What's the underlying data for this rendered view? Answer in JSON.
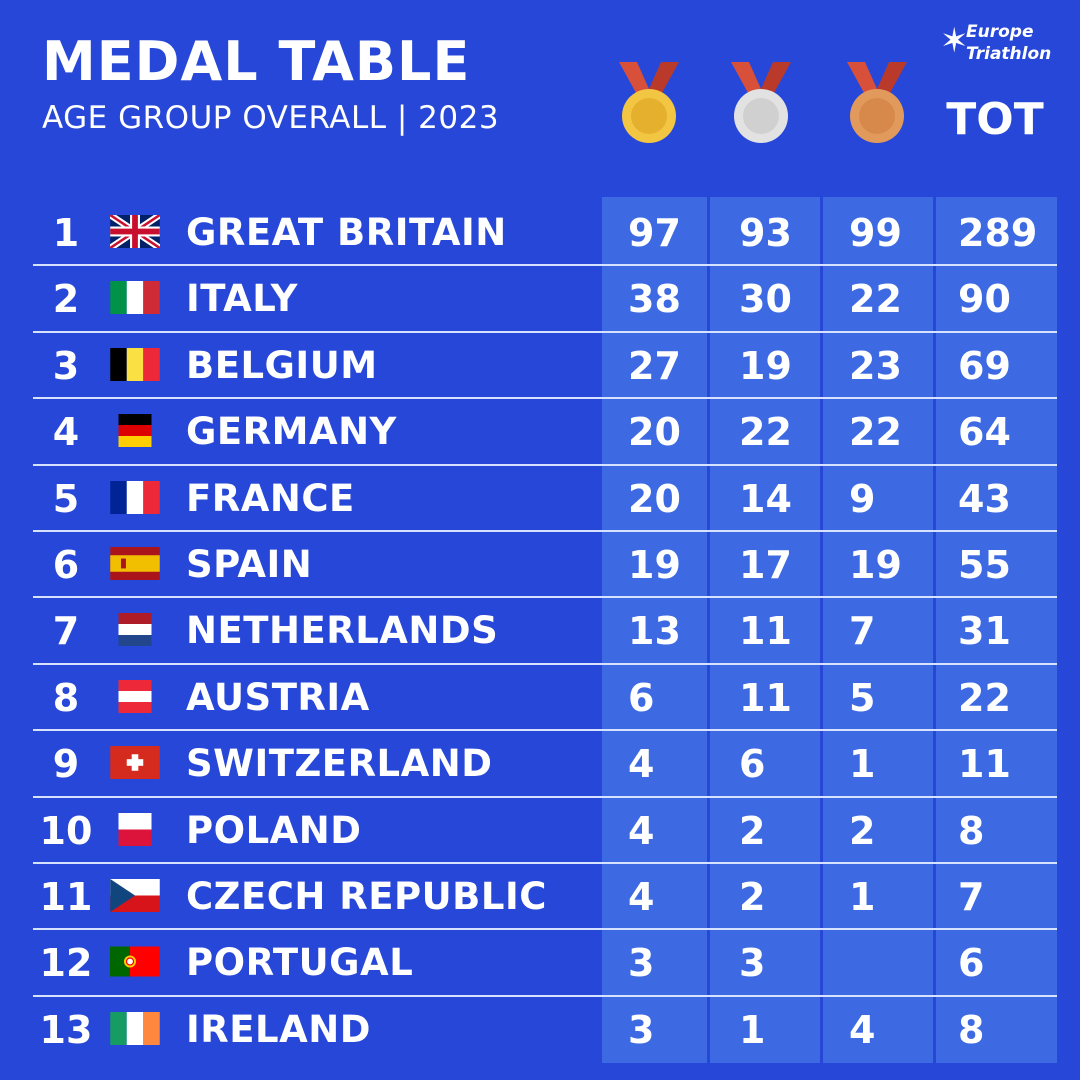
{
  "header": {
    "title": "MEDAL TABLE",
    "subtitle": "AGE GROUP OVERALL | 2023",
    "logo_line1": "Europe",
    "logo_line2": "Triathlon",
    "medals": [
      "gold-medal-icon",
      "silver-medal-icon",
      "bronze-medal-icon"
    ],
    "total_label": "TOT"
  },
  "colors": {
    "background": "#2747d8",
    "column_background": "#3d6ae3",
    "gold": "#f2c542",
    "silver": "#e2e2e2",
    "bronze": "#e19a5c",
    "ribbon": "#d84f3a"
  },
  "rows": [
    {
      "rank": "1",
      "country": "GREAT BRITAIN",
      "flag": "flag-great-britain-icon",
      "gold": "97",
      "silver": "93",
      "bronze": "99",
      "total": "289"
    },
    {
      "rank": "2",
      "country": "ITALY",
      "flag": "flag-italy-icon",
      "gold": "38",
      "silver": "30",
      "bronze": "22",
      "total": "90"
    },
    {
      "rank": "3",
      "country": "BELGIUM",
      "flag": "flag-belgium-icon",
      "gold": "27",
      "silver": "19",
      "bronze": "23",
      "total": "69"
    },
    {
      "rank": "4",
      "country": "GERMANY",
      "flag": "flag-germany-icon",
      "gold": "20",
      "silver": "22",
      "bronze": "22",
      "total": "64"
    },
    {
      "rank": "5",
      "country": "FRANCE",
      "flag": "flag-france-icon",
      "gold": "20",
      "silver": "14",
      "bronze": "9",
      "total": "43"
    },
    {
      "rank": "6",
      "country": "SPAIN",
      "flag": "flag-spain-icon",
      "gold": "19",
      "silver": "17",
      "bronze": "19",
      "total": "55"
    },
    {
      "rank": "7",
      "country": "NETHERLANDS",
      "flag": "flag-netherlands-icon",
      "gold": "13",
      "silver": "11",
      "bronze": "7",
      "total": "31"
    },
    {
      "rank": "8",
      "country": "AUSTRIA",
      "flag": "flag-austria-icon",
      "gold": "6",
      "silver": "11",
      "bronze": "5",
      "total": "22"
    },
    {
      "rank": "9",
      "country": "SWITZERLAND",
      "flag": "flag-switzerland-icon",
      "gold": "4",
      "silver": "6",
      "bronze": "1",
      "total": "11"
    },
    {
      "rank": "10",
      "country": "POLAND",
      "flag": "flag-poland-icon",
      "gold": "4",
      "silver": "2",
      "bronze": "2",
      "total": "8"
    },
    {
      "rank": "11",
      "country": "CZECH REPUBLIC",
      "flag": "flag-czech-republic-icon",
      "gold": "4",
      "silver": "2",
      "bronze": "1",
      "total": "7"
    },
    {
      "rank": "12",
      "country": "PORTUGAL",
      "flag": "flag-portugal-icon",
      "gold": "3",
      "silver": "3",
      "bronze": "",
      "total": "6"
    },
    {
      "rank": "13",
      "country": "IRELAND",
      "flag": "flag-ireland-icon",
      "gold": "3",
      "silver": "1",
      "bronze": "4",
      "total": "8"
    }
  ]
}
